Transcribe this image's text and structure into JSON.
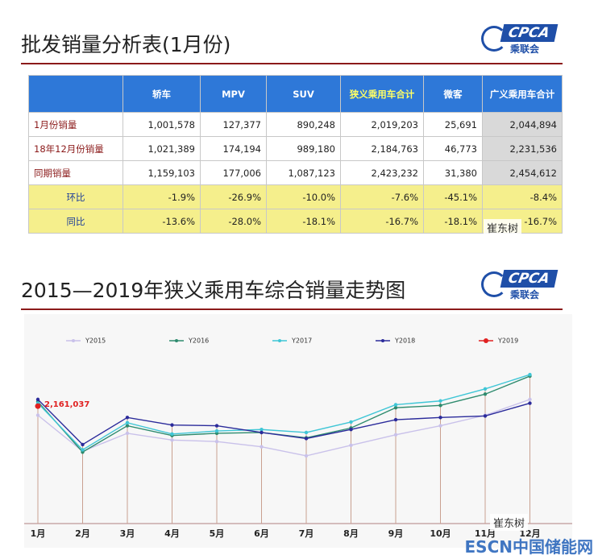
{
  "table_slide": {
    "title": "批发销量分析表(1月份)",
    "logo": {
      "mark": "CPCA",
      "name": "乘联会"
    },
    "columns": [
      "轿车",
      "MPV",
      "SUV",
      "狭义乘用车合计",
      "微客",
      "广义乘用车合计"
    ],
    "rows": [
      [
        "1月份销量",
        "1,001,578",
        "127,377",
        "890,248",
        "2,019,203",
        "25,691",
        "2,044,894"
      ],
      [
        "18年12月份销量",
        "1,021,389",
        "174,194",
        "989,180",
        "2,184,763",
        "46,773",
        "2,231,536"
      ],
      [
        "同期销量",
        "1,159,103",
        "177,006",
        "1,087,123",
        "2,423,232",
        "31,380",
        "2,454,612"
      ],
      [
        "环比",
        "-1.9%",
        "-26.9%",
        "-10.0%",
        "-7.6%",
        "-45.1%",
        "-8.4%"
      ],
      [
        "同比",
        "-13.6%",
        "-28.0%",
        "-18.1%",
        "-16.7%",
        "-18.1%",
        "-16.7%"
      ]
    ]
  },
  "chart_slide": {
    "title": "2015—2019年狭义乘用车综合销量走势图",
    "logo": {
      "mark": "CPCA",
      "name": "乘联会"
    }
  },
  "chart_data": {
    "type": "line",
    "categories": [
      "1月",
      "2月",
      "3月",
      "4月",
      "5月",
      "6月",
      "7月",
      "8月",
      "9月",
      "10月",
      "11月",
      "12月"
    ],
    "ylim": [
      600000,
      3330000
    ],
    "series": [
      {
        "name": "Y2015",
        "color": "#c9c1ea",
        "values": [
          2040000,
          1560000,
          1800000,
          1710000,
          1690000,
          1620000,
          1500000,
          1640000,
          1780000,
          1900000,
          2040000,
          2250000
        ]
      },
      {
        "name": "Y2016",
        "color": "#2e8b6e",
        "values": [
          2220000,
          1550000,
          1900000,
          1770000,
          1800000,
          1810000,
          1740000,
          1870000,
          2140000,
          2170000,
          2320000,
          2560000
        ]
      },
      {
        "name": "Y2017",
        "color": "#3fc6d6",
        "values": [
          2200000,
          1580000,
          1940000,
          1790000,
          1830000,
          1850000,
          1810000,
          1950000,
          2180000,
          2230000,
          2390000,
          2580000
        ]
      },
      {
        "name": "Y2018",
        "color": "#2b2b9b",
        "values": [
          2250000,
          1650000,
          2010000,
          1910000,
          1900000,
          1810000,
          1730000,
          1850000,
          1980000,
          2010000,
          2030000,
          2200000
        ]
      },
      {
        "name": "Y2019",
        "color": "#e02020",
        "values": [
          2161037,
          null,
          null,
          null,
          null,
          null,
          null,
          null,
          null,
          null,
          null,
          null
        ],
        "value_labels": [
          "2,161,037",
          null,
          null,
          null,
          null,
          null,
          null,
          null,
          null,
          null,
          null,
          null
        ]
      }
    ]
  },
  "watermarks": [
    "崔东树",
    "崔东树",
    "ESCN中国储能网"
  ]
}
